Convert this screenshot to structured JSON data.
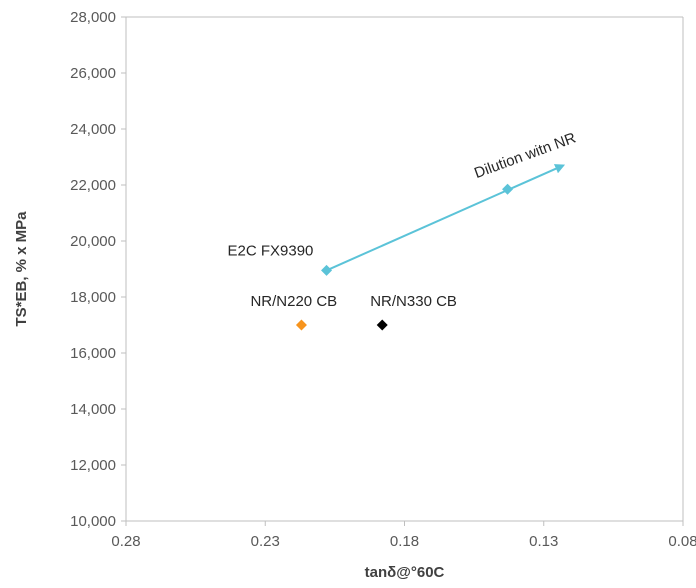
{
  "chart_data": {
    "type": "scatter",
    "xlabel": "tanδ@°60C",
    "ylabel": "TS*EB, % x MPa",
    "xlim": [
      0.28,
      0.08
    ],
    "ylim": [
      10000,
      28000
    ],
    "x_reversed": true,
    "x_ticks": [
      {
        "value": 0.28,
        "label": "0.28"
      },
      {
        "value": 0.23,
        "label": "0.23"
      },
      {
        "value": 0.18,
        "label": "0.18"
      },
      {
        "value": 0.13,
        "label": "0.13"
      },
      {
        "value": 0.08,
        "label": "0.08"
      }
    ],
    "y_ticks": [
      {
        "value": 10000,
        "label": "10,000"
      },
      {
        "value": 12000,
        "label": "12,000"
      },
      {
        "value": 14000,
        "label": "14,000"
      },
      {
        "value": 16000,
        "label": "16,000"
      },
      {
        "value": 18000,
        "label": "18,000"
      },
      {
        "value": 20000,
        "label": "20,000"
      },
      {
        "value": 22000,
        "label": "22,000"
      },
      {
        "value": 24000,
        "label": "24,000"
      },
      {
        "value": 26000,
        "label": "26,000"
      },
      {
        "value": 28000,
        "label": "28,000"
      }
    ],
    "grid": false,
    "legend": "none",
    "series": [
      {
        "label": "E2C FX9390",
        "color": "#5bc3d8",
        "marker": "diamond",
        "points": [
          {
            "x": 0.208,
            "y": 18950
          },
          {
            "x": 0.143,
            "y": 21850
          }
        ]
      },
      {
        "label": "NR/N220 CB",
        "color": "#f7941d",
        "marker": "diamond",
        "points": [
          {
            "x": 0.217,
            "y": 17000
          }
        ]
      },
      {
        "label": "NR/N330 CB",
        "color": "#000000",
        "marker": "diamond",
        "points": [
          {
            "x": 0.188,
            "y": 17000
          }
        ]
      }
    ],
    "arrow": {
      "color": "#5bc3d8",
      "from": {
        "x": 0.208,
        "y": 18950
      },
      "to": {
        "x": 0.123,
        "y": 22700
      }
    },
    "annotations": [
      {
        "text": "E2C FX9390",
        "x": 0.208,
        "y": 18950
      },
      {
        "text": "NR/N220 CB",
        "x": 0.217,
        "y": 17000
      },
      {
        "text": "NR/N330 CB",
        "x": 0.188,
        "y": 17000
      },
      {
        "text": "Dilution witn NR",
        "x": 0.143,
        "y": 21850
      }
    ],
    "axis_color": "#bfbfbf"
  }
}
